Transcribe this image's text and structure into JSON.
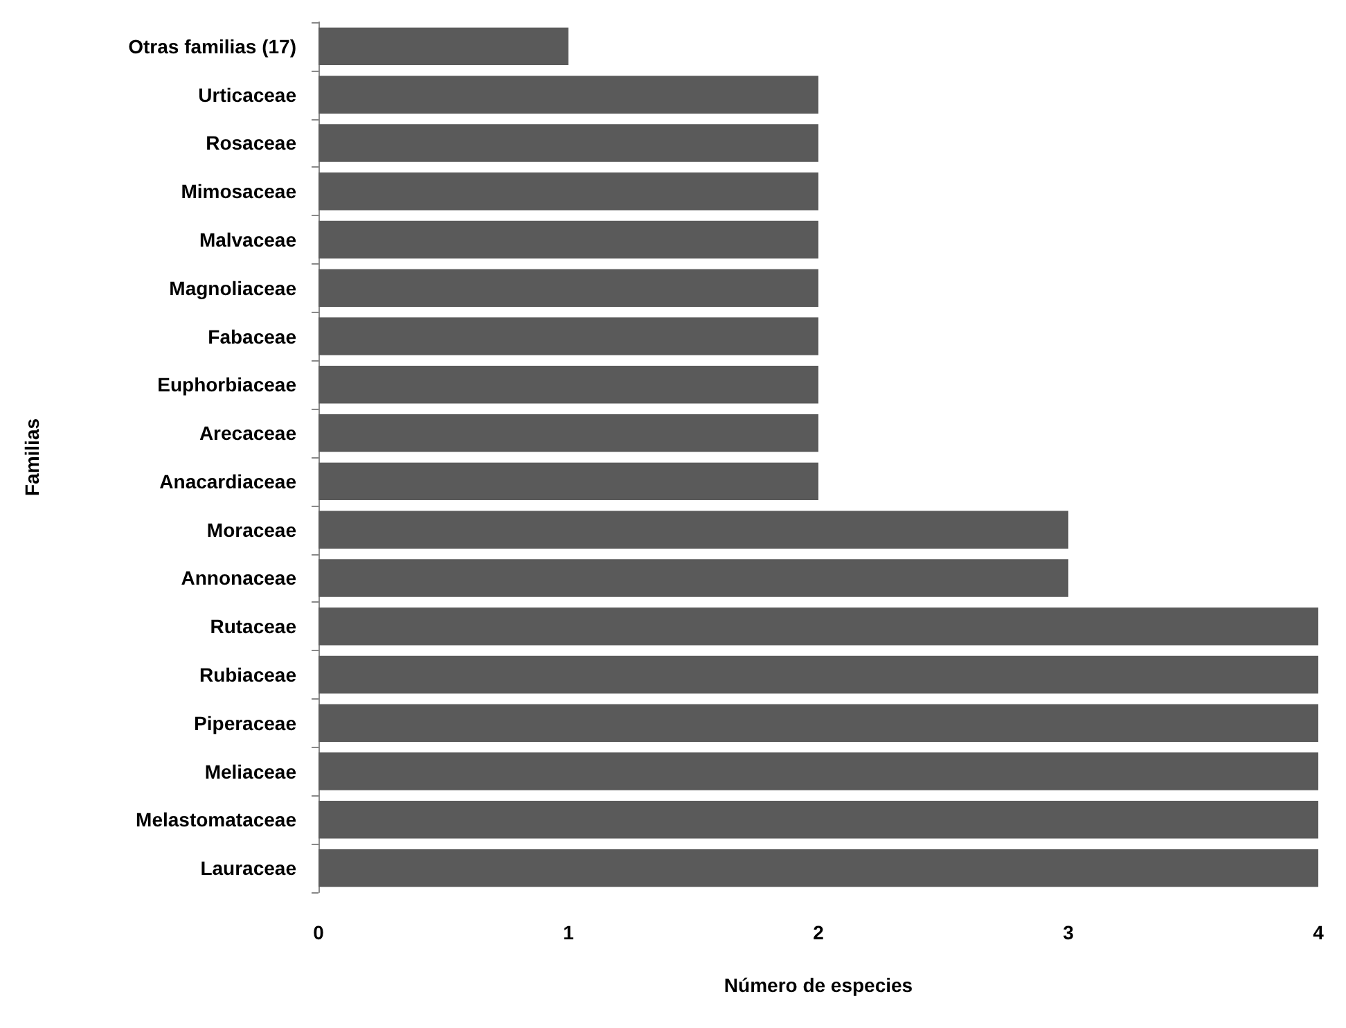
{
  "chart_data": {
    "type": "bar",
    "orientation": "horizontal",
    "xlabel": "Número de especies",
    "ylabel": "Familias",
    "categories": [
      "Otras familias (17)",
      "Urticaceae",
      "Rosaceae",
      "Mimosaceae",
      "Malvaceae",
      "Magnoliaceae",
      "Fabaceae",
      "Euphorbiaceae",
      "Arecaceae",
      "Anacardiaceae",
      "Moraceae",
      "Annonaceae",
      "Rutaceae",
      "Rubiaceae",
      "Piperaceae",
      "Meliaceae",
      "Melastomataceae",
      "Lauraceae"
    ],
    "values": [
      1,
      2,
      2,
      2,
      2,
      2,
      2,
      2,
      2,
      2,
      3,
      3,
      4,
      4,
      4,
      4,
      4,
      4
    ],
    "color": "#5a5a5a",
    "xlim": [
      0,
      4
    ],
    "xticks": [
      0,
      1,
      2,
      3,
      4
    ],
    "grid": false
  }
}
